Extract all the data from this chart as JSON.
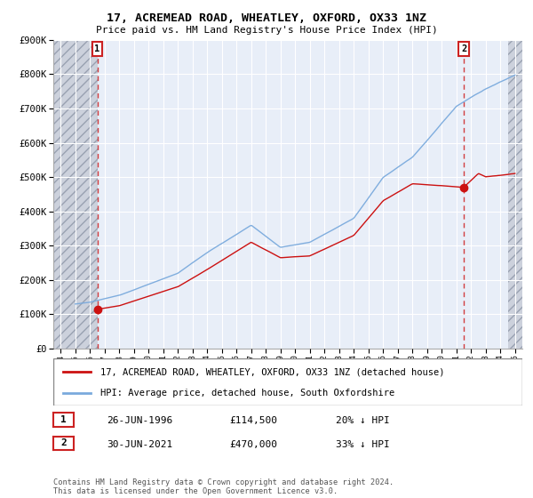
{
  "title": "17, ACREMEAD ROAD, WHEATLEY, OXFORD, OX33 1NZ",
  "subtitle": "Price paid vs. HM Land Registry's House Price Index (HPI)",
  "legend_line1": "17, ACREMEAD ROAD, WHEATLEY, OXFORD, OX33 1NZ (detached house)",
  "legend_line2": "HPI: Average price, detached house, South Oxfordshire",
  "annotation1_date": "26-JUN-1996",
  "annotation1_price": "£114,500",
  "annotation1_pct": "20% ↓ HPI",
  "annotation2_date": "30-JUN-2021",
  "annotation2_price": "£470,000",
  "annotation2_pct": "33% ↓ HPI",
  "footer": "Contains HM Land Registry data © Crown copyright and database right 2024.\nThis data is licensed under the Open Government Licence v3.0.",
  "sale1_x": 1996.5,
  "sale1_y": 114500,
  "sale2_x": 2021.5,
  "sale2_y": 470000,
  "ylim": [
    0,
    900000
  ],
  "xlim": [
    1993.5,
    2025.5
  ],
  "hatch_end": 1996.5,
  "bg_color": "#ffffff",
  "plot_bg": "#e8eef8",
  "grid_color": "#ffffff",
  "red_color": "#cc1111",
  "blue_color": "#7aaadd",
  "dashed_red": "#cc1111",
  "hatch_face": "#c8ccd8",
  "hatch_edge": "#9099aa"
}
